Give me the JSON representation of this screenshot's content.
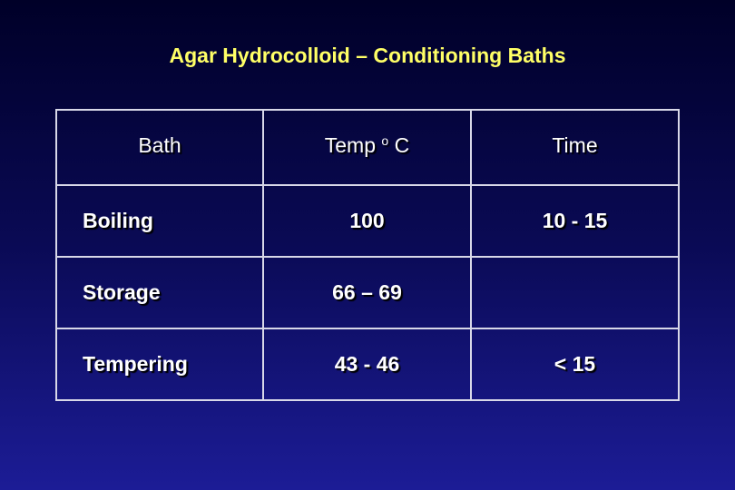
{
  "title": "Agar Hydrocolloid – Conditioning Baths",
  "table": {
    "header": {
      "bath": "Bath",
      "temp": {
        "base": "Temp",
        "superscript": "o",
        "unit": "C"
      },
      "time": "Time"
    },
    "rows": [
      [
        "Boiling",
        "100",
        "10 - 15"
      ],
      [
        "Storage",
        "66 – 69"
      ],
      [
        "Tempering",
        "43 - 46",
        "< 15"
      ]
    ]
  }
}
